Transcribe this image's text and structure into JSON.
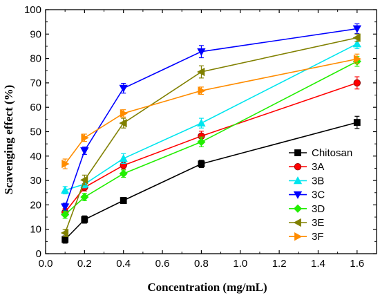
{
  "chart_data": {
    "type": "line",
    "xlabel": "Concentration (mg/mL)",
    "ylabel": "Scavenging effect (%)",
    "xlim": [
      0.0,
      1.7
    ],
    "ylim": [
      0,
      100
    ],
    "x_ticks": [
      "0.0",
      "0.2",
      "0.4",
      "0.6",
      "0.8",
      "1.0",
      "1.2",
      "1.4",
      "1.6"
    ],
    "y_ticks": [
      "0",
      "10",
      "20",
      "30",
      "40",
      "50",
      "60",
      "70",
      "80",
      "90",
      "100"
    ],
    "x": [
      0.1,
      0.2,
      0.4,
      0.8,
      1.6
    ],
    "legend_position": "lower-right",
    "grid": false,
    "series": [
      {
        "name": "Chitosan",
        "color": "#000000",
        "marker": "square",
        "values": [
          5.8,
          14.0,
          21.8,
          36.8,
          53.8
        ],
        "errors": [
          1.5,
          1.5,
          1.2,
          1.5,
          2.5
        ]
      },
      {
        "name": "3A",
        "color": "#ff0000",
        "marker": "circle",
        "values": [
          17.0,
          27.2,
          36.2,
          48.2,
          70.0
        ],
        "errors": [
          1.5,
          1.5,
          1.5,
          2.0,
          2.5
        ]
      },
      {
        "name": "3B",
        "color": "#00e5ee",
        "marker": "triangle-up",
        "values": [
          26.0,
          28.5,
          39.0,
          53.5,
          86.0
        ],
        "errors": [
          1.5,
          1.5,
          2.0,
          2.0,
          2.0
        ]
      },
      {
        "name": "3C",
        "color": "#0000ff",
        "marker": "triangle-down",
        "values": [
          19.2,
          42.2,
          67.8,
          82.8,
          92.2
        ],
        "errors": [
          1.5,
          1.5,
          2.0,
          2.5,
          2.0
        ]
      },
      {
        "name": "3D",
        "color": "#22ee00",
        "marker": "diamond",
        "values": [
          16.0,
          23.2,
          32.8,
          45.8,
          78.8
        ],
        "errors": [
          1.5,
          1.5,
          1.5,
          2.0,
          2.0
        ]
      },
      {
        "name": "3E",
        "color": "#808000",
        "marker": "triangle-left",
        "values": [
          8.5,
          30.2,
          53.5,
          74.5,
          88.5
        ],
        "errors": [
          1.5,
          2.0,
          2.0,
          2.5,
          1.5
        ]
      },
      {
        "name": "3F",
        "color": "#ff8c00",
        "marker": "triangle-right",
        "values": [
          36.8,
          47.5,
          57.5,
          66.8,
          79.8
        ],
        "errors": [
          2.0,
          1.5,
          1.5,
          1.5,
          2.0
        ]
      }
    ]
  }
}
